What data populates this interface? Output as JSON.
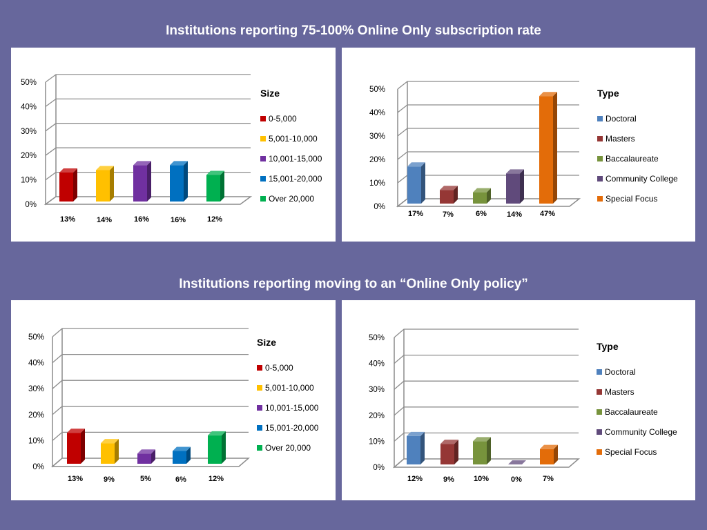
{
  "titles": {
    "top": "Institutions reporting 75-100% Online Only subscription rate",
    "bottom": "Institutions reporting moving to an “Online Only policy”"
  },
  "chart_data": [
    {
      "type": "bar",
      "legend_title": "Size",
      "categories": [
        "0-5,000",
        "5,001-10,000",
        "10,001-15,000",
        "15,001-20,000",
        "Over 20,000"
      ],
      "values": [
        13,
        14,
        16,
        16,
        12
      ],
      "value_labels": [
        "13%",
        "14%",
        "16%",
        "16%",
        "12%"
      ],
      "colors": [
        "#c00000",
        "#ffc000",
        "#7030a0",
        "#0070c0",
        "#00b050"
      ],
      "y_ticks": [
        "0%",
        "10%",
        "20%",
        "30%",
        "40%",
        "50%"
      ],
      "ylim": [
        0,
        50
      ],
      "grid": true,
      "legend_position": "right"
    },
    {
      "type": "bar",
      "legend_title": "Type",
      "categories": [
        "Doctoral",
        "Masters",
        "Baccalaureate",
        "Community College",
        "Special Focus"
      ],
      "values": [
        17,
        7,
        6,
        14,
        47
      ],
      "value_labels": [
        "17%",
        "7%",
        "6%",
        "14%",
        "47%"
      ],
      "colors": [
        "#4f81bd",
        "#953735",
        "#77933c",
        "#604a7b",
        "#e36c09"
      ],
      "y_ticks": [
        "0%",
        "10%",
        "20%",
        "30%",
        "40%",
        "50%"
      ],
      "ylim": [
        0,
        50
      ],
      "grid": true,
      "legend_position": "right"
    },
    {
      "type": "bar",
      "legend_title": "Size",
      "categories": [
        "0-5,000",
        "5,001-10,000",
        "10,001-15,000",
        "15,001-20,000",
        "Over 20,000"
      ],
      "values": [
        13,
        9,
        5,
        6,
        12
      ],
      "value_labels": [
        "13%",
        "9%",
        "5%",
        "6%",
        "12%"
      ],
      "colors": [
        "#c00000",
        "#ffc000",
        "#7030a0",
        "#0070c0",
        "#00b050"
      ],
      "y_ticks": [
        "0%",
        "10%",
        "20%",
        "30%",
        "40%",
        "50%"
      ],
      "ylim": [
        0,
        50
      ],
      "grid": true,
      "legend_position": "right"
    },
    {
      "type": "bar",
      "legend_title": "Type",
      "categories": [
        "Doctoral",
        "Masters",
        "Baccalaureate",
        "Community College",
        "Special Focus"
      ],
      "values": [
        12,
        9,
        10,
        0,
        7
      ],
      "value_labels": [
        "12%",
        "9%",
        "10%",
        "0%",
        "7%"
      ],
      "colors": [
        "#4f81bd",
        "#953735",
        "#77933c",
        "#604a7b",
        "#e36c09"
      ],
      "y_ticks": [
        "0%",
        "10%",
        "20%",
        "30%",
        "40%",
        "50%"
      ],
      "ylim": [
        0,
        50
      ],
      "grid": true,
      "legend_position": "right"
    }
  ]
}
